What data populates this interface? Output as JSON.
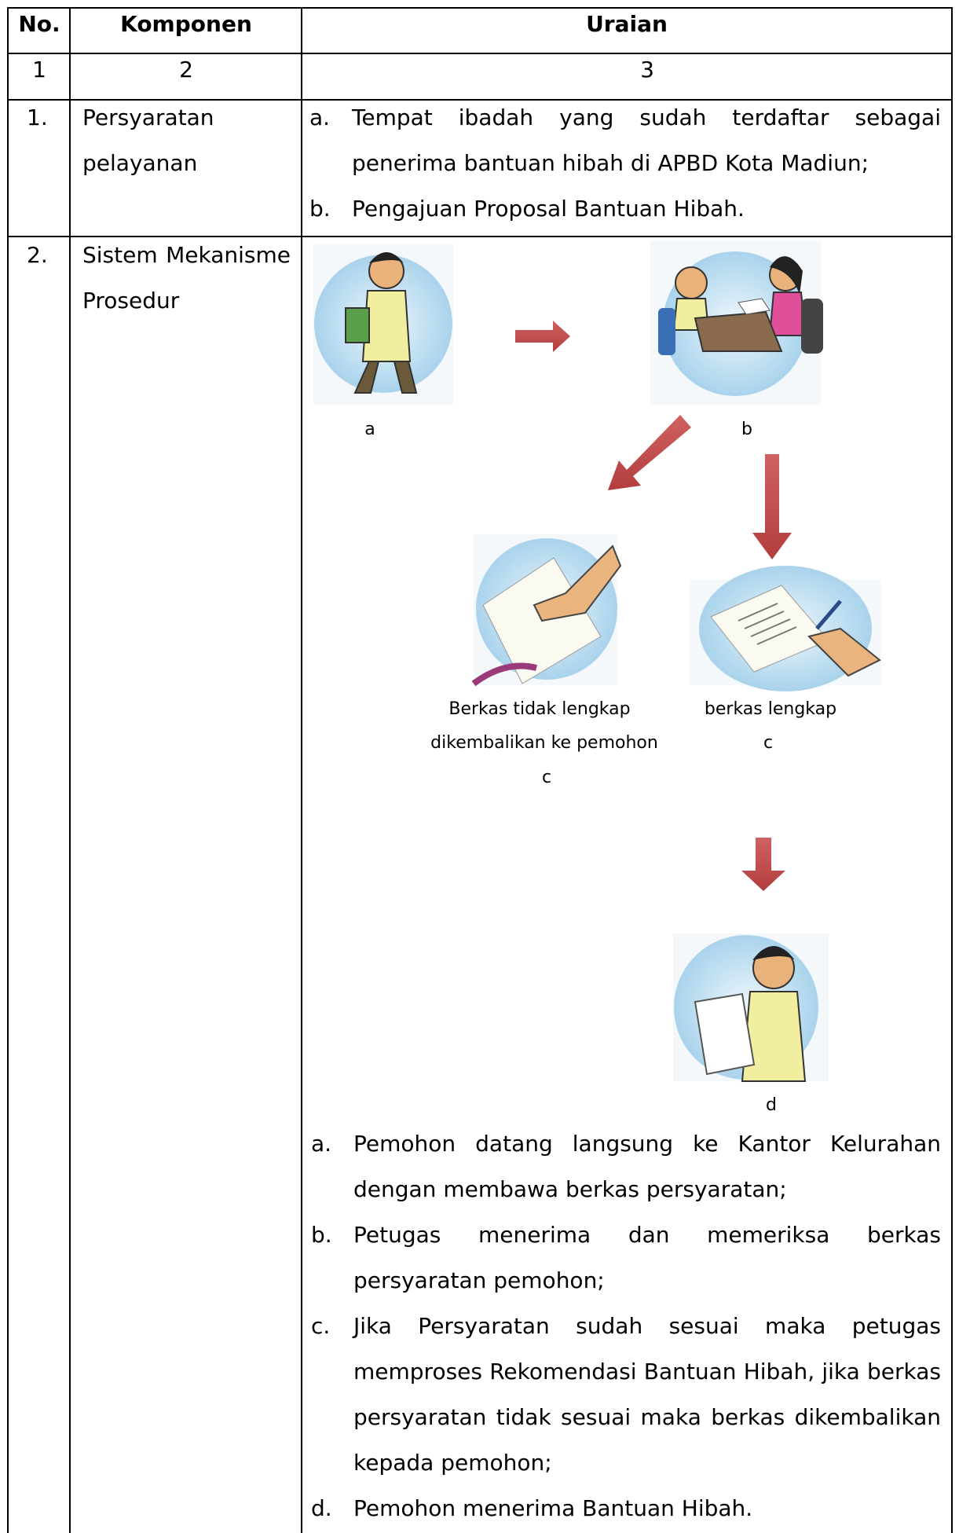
{
  "header": {
    "no": "No.",
    "komponen": "Komponen",
    "uraian": "Uraian"
  },
  "column_numbers": [
    "1",
    "2",
    "3"
  ],
  "rows": [
    {
      "no": "1.",
      "komponen": "Persyaratan pelayanan",
      "items": [
        {
          "marker": "a.",
          "text": "Tempat ibadah yang sudah terdaftar sebagai penerima bantuan hibah di APBD Kota Madiun;"
        },
        {
          "marker": "b.",
          "text": "Pengajuan Proposal Bantuan Hibah."
        }
      ]
    },
    {
      "no": "2.",
      "komponen": "Sistem Mekanisme Prosedur",
      "diagram": {
        "a": "a",
        "b": "b",
        "incomplete": [
          "Berkas tidak lengkap",
          "dikembalikan ke pemohon",
          "c"
        ],
        "complete": [
          "berkas lengkap",
          "c"
        ],
        "d": "d"
      },
      "items": [
        {
          "marker": "a.",
          "text": "Pemohon datang langsung ke Kantor Kelurahan dengan membawa berkas persyaratan;"
        },
        {
          "marker": "b.",
          "text": "Petugas menerima dan memeriksa berkas persyaratan pemohon;"
        },
        {
          "marker": "c.",
          "text": "Jika Persyaratan sudah sesuai maka petugas memproses Rekomendasi Bantuan Hibah, jika berkas persyaratan tidak sesuai maka berkas dikembalikan kepada pemohon;"
        },
        {
          "marker": "d.",
          "text": "Pemohon menerima Bantuan Hibah."
        }
      ]
    }
  ]
}
